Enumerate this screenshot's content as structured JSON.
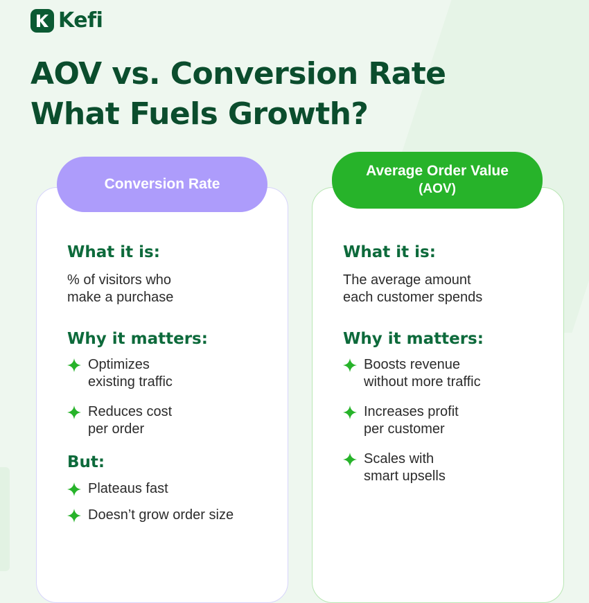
{
  "brand": {
    "name": "Kefi",
    "color": "#0b5a33"
  },
  "title": {
    "line1": "AOV vs. Conversion Rate",
    "line2": "What Fuels Growth?"
  },
  "colors": {
    "accent_green": "#27b32a",
    "accent_purple": "#ad9cfb",
    "heading_green": "#0d6a3b"
  },
  "left_card": {
    "pill": "Conversion Rate",
    "what_heading": "What it is:",
    "what_line1": "% of visitors who",
    "what_line2": "make a purchase",
    "why_heading": "Why it matters:",
    "why_items": [
      {
        "line1": "Optimizes",
        "line2": "existing traffic"
      },
      {
        "line1": "Reduces cost",
        "line2": "per order"
      }
    ],
    "but_heading": "But:",
    "but_items": [
      "Plateaus fast",
      "Doesn’t grow order size"
    ]
  },
  "right_card": {
    "pill_line1": "Average Order Value",
    "pill_line2": "(AOV)",
    "what_heading": "What it is:",
    "what_line1": "The average amount",
    "what_line2": "each customer spends",
    "why_heading": "Why it matters:",
    "why_items": [
      {
        "line1": "Boosts revenue",
        "line2": "without more traffic"
      },
      {
        "line1": "Increases profit",
        "line2": "per customer"
      },
      {
        "line1": "Scales with",
        "line2": "smart upsells"
      }
    ]
  },
  "icons": {
    "bullet": "sparkle-icon",
    "logo": "kefi-logo-icon"
  }
}
